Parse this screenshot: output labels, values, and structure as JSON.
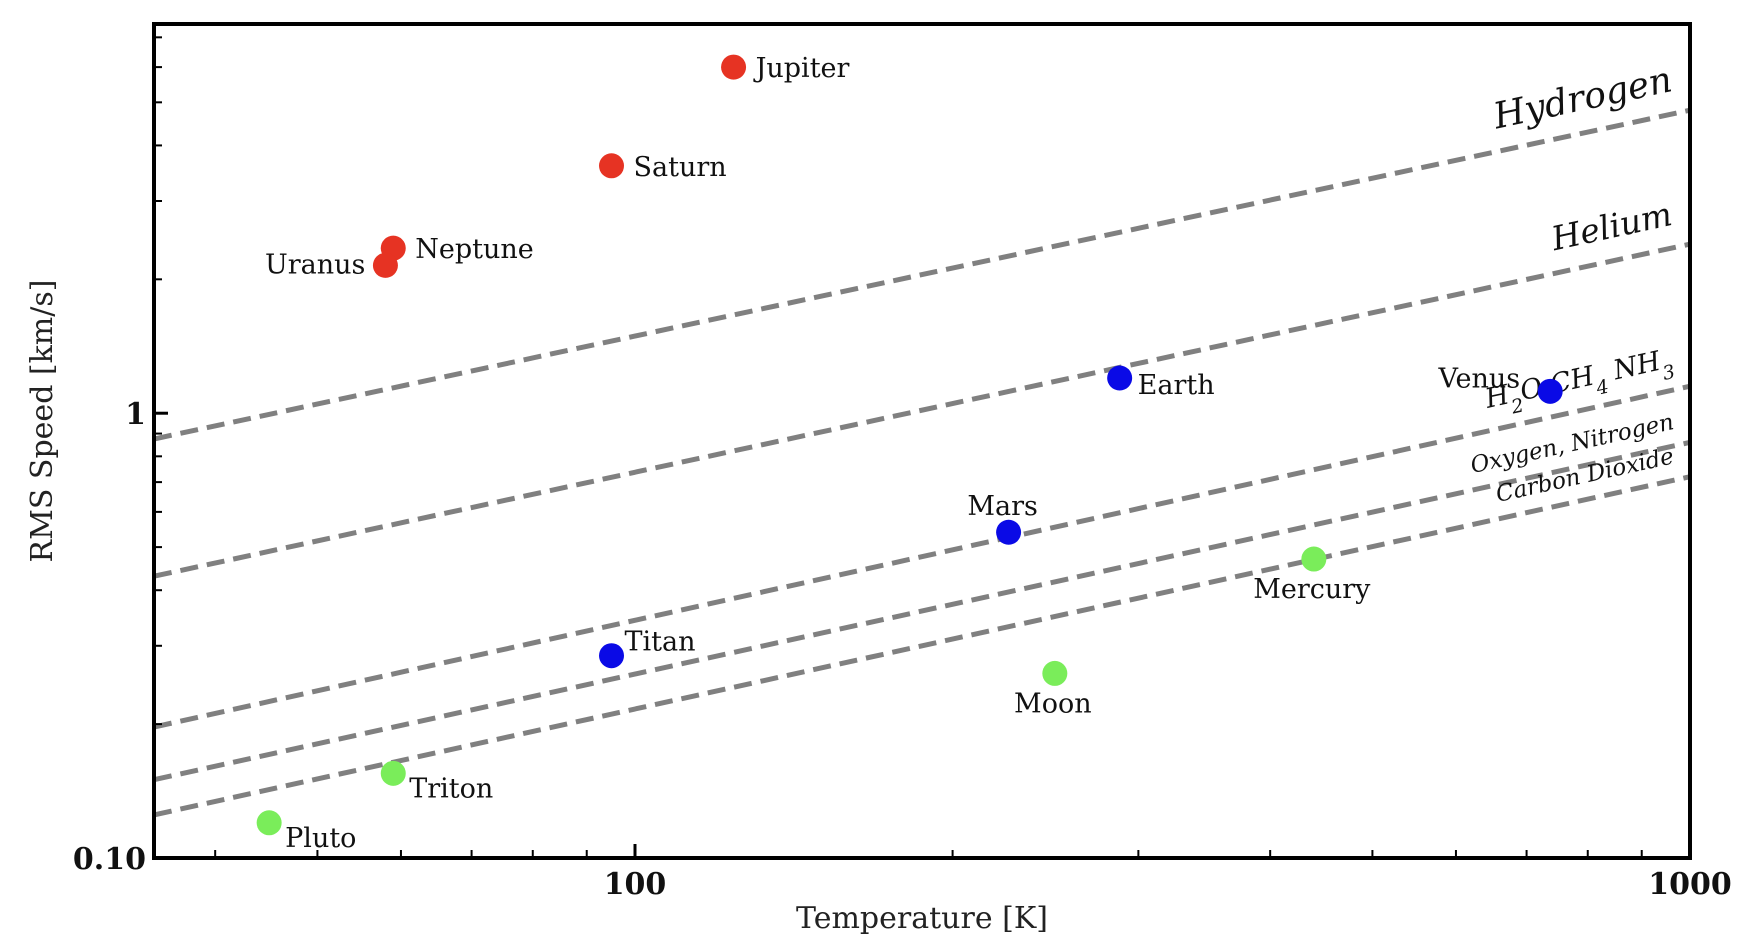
{
  "chart_data": {
    "type": "scatter",
    "title": "",
    "xlabel": "Temperature [K]",
    "ylabel": "RMS Speed [km/s]",
    "xscale": "log",
    "yscale": "log",
    "xlim": [
      35,
      1000
    ],
    "ylim": [
      0.1,
      7.5
    ],
    "xticks": [
      {
        "value": 100,
        "label": "100"
      },
      {
        "value": 1000,
        "label": "1000"
      }
    ],
    "yticks": [
      {
        "value": 0.1,
        "label": "0.10"
      },
      {
        "value": 1,
        "label": "1"
      }
    ],
    "colors": {
      "giant": "#e63323",
      "terrestrial": "#0a0ae6",
      "airless": "#7aed5a",
      "line": "#808080"
    },
    "points": [
      {
        "name": "Jupiter",
        "x": 124,
        "y": 6.0,
        "group": "giant",
        "label_pos": "right"
      },
      {
        "name": "Saturn",
        "x": 95,
        "y": 3.6,
        "group": "giant",
        "label_pos": "right"
      },
      {
        "name": "Neptune",
        "x": 59,
        "y": 2.35,
        "group": "giant",
        "label_pos": "right"
      },
      {
        "name": "Uranus",
        "x": 58,
        "y": 2.15,
        "group": "giant",
        "label_pos": "left"
      },
      {
        "name": "Earth",
        "x": 288,
        "y": 1.2,
        "group": "terrestrial",
        "label_pos": "right-below"
      },
      {
        "name": "Venus",
        "x": 737,
        "y": 1.12,
        "group": "terrestrial",
        "label_pos": "above-left"
      },
      {
        "name": "Mars",
        "x": 226,
        "y": 0.54,
        "group": "terrestrial",
        "label_pos": "above"
      },
      {
        "name": "Titan",
        "x": 95,
        "y": 0.285,
        "group": "terrestrial",
        "label_pos": "above-right"
      },
      {
        "name": "Mercury",
        "x": 440,
        "y": 0.47,
        "group": "airless",
        "label_pos": "below"
      },
      {
        "name": "Moon",
        "x": 250,
        "y": 0.26,
        "group": "airless",
        "label_pos": "below"
      },
      {
        "name": "Triton",
        "x": 59,
        "y": 0.155,
        "group": "airless",
        "label_pos": "below-right"
      },
      {
        "name": "Pluto",
        "x": 45,
        "y": 0.12,
        "group": "airless",
        "label_pos": "below-right"
      }
    ],
    "gas_lines": [
      {
        "name": "Hydrogen",
        "label": "Hydrogen",
        "y_at_min": 0.875,
        "y_at_max": 4.8
      },
      {
        "name": "Helium",
        "label": "Helium",
        "y_at_min": 0.43,
        "y_at_max": 2.4
      },
      {
        "name": "H2O CH4 NH3",
        "label_parts": [
          {
            "t": "H",
            "sub": ""
          },
          {
            "t": "2",
            "sub": "y"
          },
          {
            "t": "O CH",
            "sub": ""
          },
          {
            "t": "4",
            "sub": "y"
          },
          {
            "t": " NH",
            "sub": ""
          },
          {
            "t": "3",
            "sub": "y"
          }
        ],
        "y_at_min": 0.197,
        "y_at_max": 1.15
      },
      {
        "name": "Oxygen, Nitrogen",
        "label": "Oxygen, Nitrogen",
        "y_at_min": 0.15,
        "y_at_max": 0.86
      },
      {
        "name": "Carbon Dioxide",
        "label": "Carbon Dioxide",
        "y_at_min": 0.125,
        "y_at_max": 0.72
      }
    ]
  }
}
